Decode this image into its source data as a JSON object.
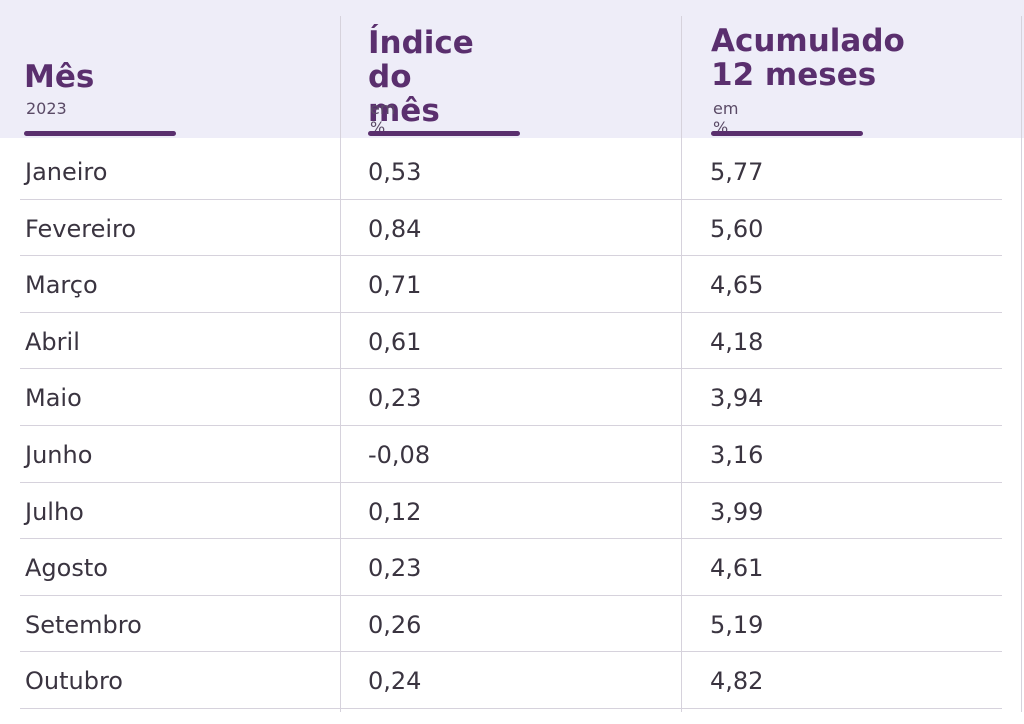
{
  "chart_data": {
    "type": "table",
    "columns": [
      {
        "title": "Mês",
        "subtitle": "2023"
      },
      {
        "title": "Índice\ndo mês",
        "subtitle": "em %"
      },
      {
        "title": "Acumulado\n12 meses",
        "subtitle": "em %"
      }
    ],
    "rows": [
      {
        "mes": "Janeiro",
        "indice": "0,53",
        "acumulado": "5,77"
      },
      {
        "mes": "Fevereiro",
        "indice": "0,84",
        "acumulado": "5,60"
      },
      {
        "mes": "Março",
        "indice": "0,71",
        "acumulado": "4,65"
      },
      {
        "mes": "Abril",
        "indice": "0,61",
        "acumulado": "4,18"
      },
      {
        "mes": "Maio",
        "indice": "0,23",
        "acumulado": "3,94"
      },
      {
        "mes": "Junho",
        "indice": "-0,08",
        "acumulado": "3,16"
      },
      {
        "mes": "Julho",
        "indice": "0,12",
        "acumulado": "3,99"
      },
      {
        "mes": "Agosto",
        "indice": "0,23",
        "acumulado": "4,61"
      },
      {
        "mes": "Setembro",
        "indice": "0,26",
        "acumulado": "5,19"
      },
      {
        "mes": "Outubro",
        "indice": "0,24",
        "acumulado": "4,82"
      }
    ]
  },
  "colors": {
    "accent": "#5a2f6e",
    "header_background": "#eeedf8",
    "grid": "#d6d2dc",
    "text": "#3a3440"
  }
}
